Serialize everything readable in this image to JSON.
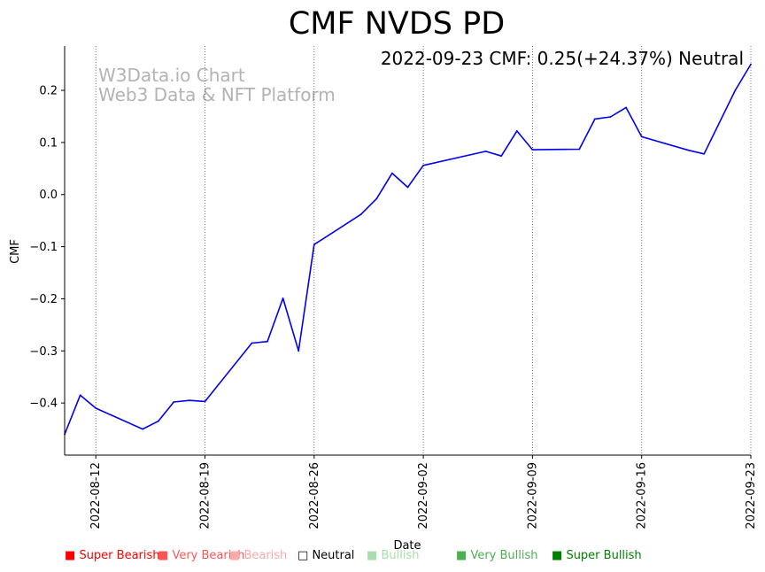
{
  "chart_data": {
    "type": "line",
    "title": "CMF NVDS PD",
    "annotation": "2022-09-23 CMF: 0.25(+24.37%) Neutral",
    "watermark_lines": [
      "W3Data.io Chart",
      "Web3 Data & NFT Platform"
    ],
    "xlabel": "Date",
    "ylabel": "CMF",
    "ylim": [
      -0.5,
      0.285
    ],
    "y_ticks": [
      0.2,
      0.1,
      0.0,
      -0.1,
      -0.2,
      -0.3,
      -0.4
    ],
    "y_tick_labels": [
      "0.2",
      "0.1",
      "0.0",
      "−0.1",
      "−0.2",
      "−0.3",
      "−0.4"
    ],
    "x_range": [
      "2022-08-10",
      "2022-09-23"
    ],
    "x_ticks": [
      "2022-08-12",
      "2022-08-19",
      "2022-08-26",
      "2022-09-02",
      "2022-09-09",
      "2022-09-16",
      "2022-09-23"
    ],
    "grid": "vertical-dotted-at-x-ticks",
    "series": [
      {
        "name": "CMF",
        "color": "#0000ee",
        "points": [
          [
            "2022-08-10",
            -0.46
          ],
          [
            "2022-08-11",
            -0.385
          ],
          [
            "2022-08-12",
            -0.41
          ],
          [
            "2022-08-15",
            -0.45
          ],
          [
            "2022-08-16",
            -0.435
          ],
          [
            "2022-08-17",
            -0.398
          ],
          [
            "2022-08-18",
            -0.395
          ],
          [
            "2022-08-19",
            -0.397
          ],
          [
            "2022-08-22",
            -0.285
          ],
          [
            "2022-08-23",
            -0.282
          ],
          [
            "2022-08-24",
            -0.199
          ],
          [
            "2022-08-25",
            -0.3
          ],
          [
            "2022-08-26",
            -0.096
          ],
          [
            "2022-08-29",
            -0.038
          ],
          [
            "2022-08-30",
            -0.008
          ],
          [
            "2022-08-31",
            0.041
          ],
          [
            "2022-09-01",
            0.014
          ],
          [
            "2022-09-02",
            0.056
          ],
          [
            "2022-09-06",
            0.083
          ],
          [
            "2022-09-07",
            0.074
          ],
          [
            "2022-09-08",
            0.122
          ],
          [
            "2022-09-09",
            0.086
          ],
          [
            "2022-09-12",
            0.087
          ],
          [
            "2022-09-13",
            0.145
          ],
          [
            "2022-09-14",
            0.149
          ],
          [
            "2022-09-15",
            0.167
          ],
          [
            "2022-09-16",
            0.111
          ],
          [
            "2022-09-19",
            0.085
          ],
          [
            "2022-09-20",
            0.078
          ],
          [
            "2022-09-22",
            0.2
          ],
          [
            "2022-09-23",
            0.25
          ]
        ]
      }
    ]
  },
  "legend": [
    {
      "label": "Super Bearish",
      "color": "#ff0000",
      "symbol": "■"
    },
    {
      "label": "Very Bearish",
      "color": "#ff5555",
      "symbol": "■"
    },
    {
      "label": "Bearish",
      "color": "#ffaaaa",
      "symbol": "■"
    },
    {
      "label": "Neutral",
      "color": "#000000",
      "symbol": "□"
    },
    {
      "label": "Bullish",
      "color": "#aaddaa",
      "symbol": "■"
    },
    {
      "label": "Very Bullish",
      "color": "#4caf50",
      "symbol": "■"
    },
    {
      "label": "Super Bullish",
      "color": "#008000",
      "symbol": "■"
    }
  ]
}
